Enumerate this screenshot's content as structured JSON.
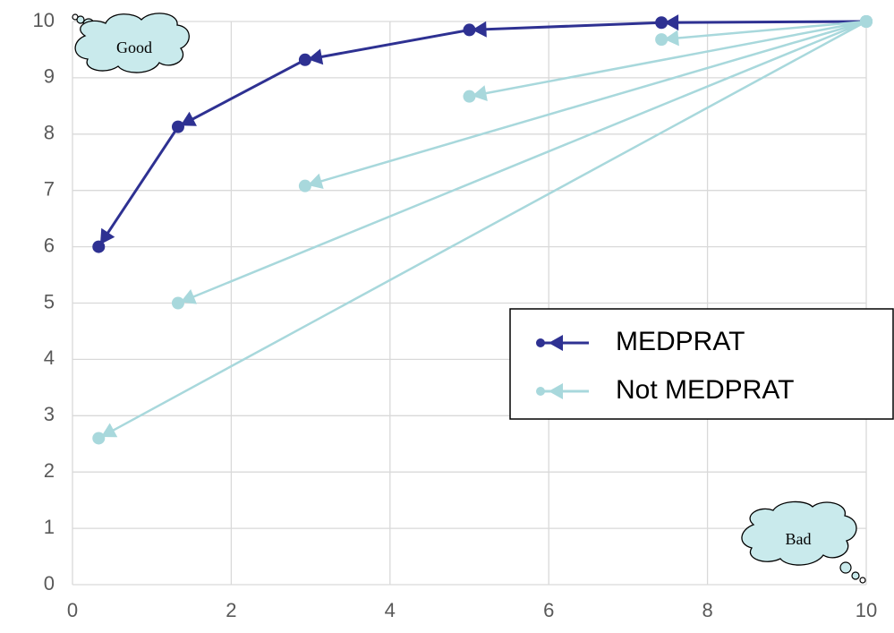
{
  "chart_data": {
    "type": "line",
    "xlim": [
      0,
      10
    ],
    "xticks": [
      0,
      2,
      4,
      6,
      8,
      10
    ],
    "ylim": [
      0,
      10
    ],
    "yticks": [
      0,
      1,
      2,
      3,
      4,
      5,
      6,
      7,
      8,
      9,
      10
    ],
    "grid": true,
    "legend": "right",
    "annotations": [
      "Good",
      "Bad"
    ],
    "series": [
      {
        "name": "MEDPRAT",
        "color": "#2e3192",
        "x": [
          0.33,
          1.33,
          2.93,
          5.0,
          7.42,
          10
        ],
        "values": [
          6.0,
          8.13,
          9.32,
          9.85,
          9.98,
          10
        ]
      },
      {
        "name": "Not MEDPRAT",
        "color": "#a8d8dc",
        "x": [
          0.33,
          10,
          1.33,
          10,
          2.93,
          10,
          5.0,
          10,
          7.42,
          10
        ],
        "values": [
          2.6,
          10,
          5.0,
          10,
          7.08,
          10,
          8.67,
          10,
          9.68,
          10
        ]
      }
    ]
  }
}
